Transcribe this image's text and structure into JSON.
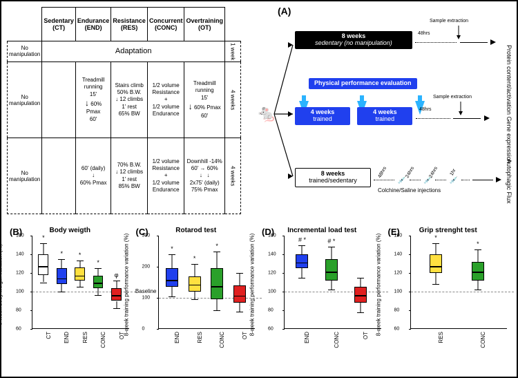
{
  "panelA": {
    "label": "(A)",
    "table": {
      "headers": [
        {
          "line1": "Sedentary",
          "line2": "(CT)"
        },
        {
          "line1": "Endurance",
          "line2": "(END)"
        },
        {
          "line1": "Resistance",
          "line2": "(RES)"
        },
        {
          "line1": "Concurrent",
          "line2": "(CONC)"
        },
        {
          "line1": "Overtraining",
          "line2": "(OT)"
        }
      ],
      "row_side_left": "No manipulation",
      "row1": {
        "merged": "Adaptation",
        "side": "1 week"
      },
      "row2": {
        "side": "4 weeks",
        "END": {
          "top": "Treadmill running",
          "l": "15'",
          "arrow": "↓",
          "r": "60% Pmax",
          "bot": "60'"
        },
        "RES": {
          "top": "Stairs climb",
          "l": "50% B.W.",
          "mid": "12 climbs 1' rest",
          "r": "65% BW"
        },
        "CONC": {
          "top": "1/2 volume Resistance",
          "plus": "+",
          "bot": "1/2 volume Endurance"
        },
        "OT": {
          "top": "Treadmill running",
          "l": "15'",
          "arrow": "↓",
          "r": "60% Pmax",
          "bot": "60'"
        }
      },
      "row3": {
        "side": "4 weeks",
        "END": {
          "top": "60' (daily)",
          "mid": "60% Pmax"
        },
        "RES": {
          "top": "70% B.W.",
          "mid": "12 climbs 1' rest",
          "bot": "85% BW"
        },
        "CONC": {
          "top": "1/2 volume Resistance",
          "plus": "+",
          "bot": "1/2 volume Endurance"
        },
        "OT": {
          "top": "Downhill -14%",
          "l1": "60'",
          "r1": "60%",
          "l2": "2x75' (daily)",
          "r2": "75% Pmax"
        }
      }
    },
    "timeline": {
      "perf_eval_label": "Physical performance evaluation",
      "arm1": {
        "bar": "8 weeks",
        "sub": "sedentary (no manipulation)",
        "sample": "Sample extraction",
        "delay": "48hrs"
      },
      "arm2": {
        "bar1": "4 weeks",
        "sub1": "trained",
        "bar2": "4 weeks",
        "sub2": "trained",
        "sample": "Sample extraction",
        "delay": "48hrs"
      },
      "arm3": {
        "bar": "8 weeks",
        "sub": "trained/sedentary",
        "inject": "Colchine/Saline injections",
        "d1": "48hrs",
        "d2": "24hrs",
        "d3": "24hrs",
        "d4": "1hr"
      },
      "right1": "Protein content/activation Gene expression",
      "right2": "Autophagic Flux"
    }
  },
  "chartB": {
    "panel": "(B)",
    "title": "Body weigth",
    "ylabel": "8-week body weigth variation (%)",
    "ylim": [
      60,
      160
    ],
    "yticks": [
      60,
      80,
      100,
      120,
      140,
      160
    ],
    "baseline": 100,
    "baseline_text": "Baseline",
    "groups": [
      "CT",
      "END",
      "RES",
      "CONC",
      "OT"
    ],
    "colors": [
      "#ffffff",
      "#2040ee",
      "#ffe040",
      "#2aa02a",
      "#e02020"
    ],
    "boxes": [
      {
        "q1": 118,
        "med": 128,
        "q3": 140,
        "lo": 110,
        "hi": 152,
        "sig": "*"
      },
      {
        "q1": 108,
        "med": 115,
        "q3": 125,
        "lo": 100,
        "hi": 135,
        "sig": "*"
      },
      {
        "q1": 112,
        "med": 118,
        "q3": 126,
        "lo": 105,
        "hi": 133,
        "sig": "*"
      },
      {
        "q1": 104,
        "med": 110,
        "q3": 117,
        "lo": 96,
        "hi": 125,
        "sig": "*"
      },
      {
        "q1": 90,
        "med": 97,
        "q3": 104,
        "lo": 82,
        "hi": 112,
        "sig": "φ"
      }
    ],
    "sig_fontsize": 9
  },
  "chartC": {
    "panel": "(C)",
    "title": "Rotarod test",
    "ylabel": "8-week training performance variation (%)",
    "ylim": [
      0,
      300
    ],
    "yticks": [
      0,
      100,
      200,
      300
    ],
    "baseline": 100,
    "groups": [
      "END",
      "RES",
      "CONC",
      "OT"
    ],
    "colors": [
      "#2040ee",
      "#ffe040",
      "#2aa02a",
      "#e02020"
    ],
    "boxes": [
      {
        "q1": 135,
        "med": 160,
        "q3": 195,
        "lo": 105,
        "hi": 240,
        "sig": "*"
      },
      {
        "q1": 120,
        "med": 145,
        "q3": 170,
        "lo": 95,
        "hi": 210,
        "sig": "*"
      },
      {
        "q1": 95,
        "med": 140,
        "q3": 195,
        "lo": 60,
        "hi": 250,
        "sig": "*"
      },
      {
        "q1": 85,
        "med": 110,
        "q3": 140,
        "lo": 55,
        "hi": 180,
        "sig": ""
      }
    ]
  },
  "chartD": {
    "panel": "(D)",
    "title": "Incremental load test",
    "ylabel": "8-week training performance variation (%)",
    "ylim": [
      60,
      160
    ],
    "yticks": [
      60,
      80,
      100,
      120,
      140,
      160
    ],
    "baseline": 100,
    "groups": [
      "END",
      "CONC",
      "OT"
    ],
    "colors": [
      "#2040ee",
      "#2aa02a",
      "#e02020"
    ],
    "boxes": [
      {
        "q1": 125,
        "med": 132,
        "q3": 140,
        "lo": 115,
        "hi": 150,
        "sig": "# *"
      },
      {
        "q1": 112,
        "med": 122,
        "q3": 135,
        "lo": 102,
        "hi": 148,
        "sig": "# *"
      },
      {
        "q1": 88,
        "med": 97,
        "q3": 105,
        "lo": 78,
        "hi": 115,
        "sig": ""
      }
    ]
  },
  "chartE": {
    "panel": "(E)",
    "title": "Grip strenght test",
    "ylabel": "8-week training performance variation (%)",
    "ylim": [
      60,
      160
    ],
    "yticks": [
      60,
      80,
      100,
      120,
      140,
      160
    ],
    "baseline": 100,
    "groups": [
      "RES",
      "CONC"
    ],
    "colors": [
      "#ffe040",
      "#2aa02a"
    ],
    "boxes": [
      {
        "q1": 120,
        "med": 128,
        "q3": 140,
        "lo": 108,
        "hi": 152,
        "sig": "*"
      },
      {
        "q1": 112,
        "med": 122,
        "q3": 132,
        "lo": 102,
        "hi": 145,
        "sig": "*"
      }
    ]
  }
}
